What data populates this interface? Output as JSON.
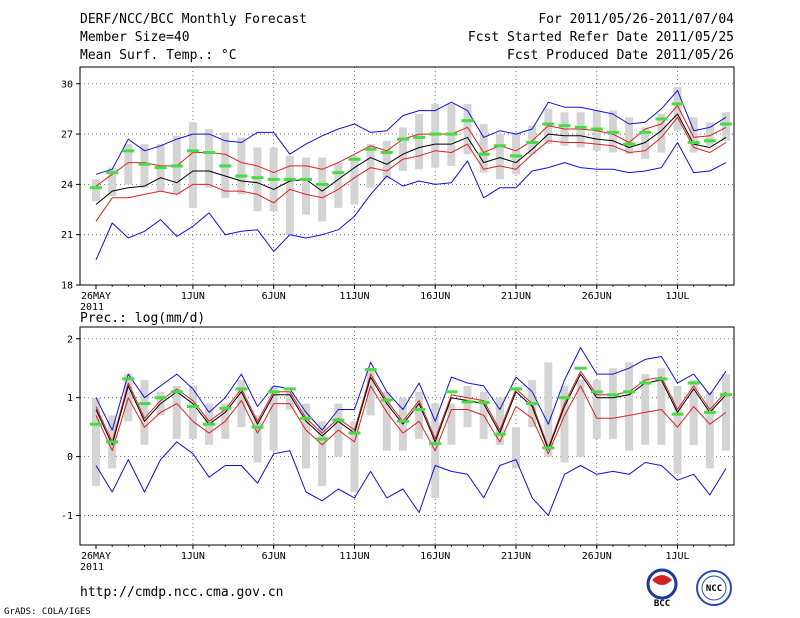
{
  "header": {
    "title": "DERF/NCC/BCC Monthly Forecast",
    "member_size": "Member Size=40",
    "variable": "Mean Surf. Temp.: °C",
    "period": "For 2011/05/26-2011/07/04",
    "started": "Fcst Started Refer Date 2011/05/25",
    "produced": "Fcst Produced Date 2011/05/26"
  },
  "footer": {
    "url": "http://cmdp.ncc.cma.gov.cn",
    "credit": "GrADS: COLA/IGES",
    "logo_bcc": "BCC",
    "logo_ncc": "NCC"
  },
  "colors": {
    "box": "#d4d4d4",
    "median": "#44dd44",
    "mean": "#000000",
    "inner": "#dd2222",
    "outer": "#1111dd",
    "grid": "#555555"
  },
  "chart_data": [
    {
      "type": "line",
      "title": "Mean Surf. Temp.: °C",
      "ylabel": "°C",
      "ylim": [
        18,
        31
      ],
      "yticks": [
        18,
        21,
        24,
        27,
        30
      ],
      "xticks": [
        "26MAY",
        "1JUN",
        "6JUN",
        "11JUN",
        "16JUN",
        "21JUN",
        "26JUN",
        "1JUL"
      ],
      "xticks_day_index": [
        0,
        6,
        11,
        16,
        21,
        26,
        31,
        36
      ],
      "year_label": "2011",
      "days": 40,
      "grid": true,
      "series": [
        {
          "name": "box_low",
          "values": [
            23.0,
            23.3,
            24.0,
            23.8,
            23.6,
            23.4,
            22.6,
            23.8,
            23.2,
            23.4,
            22.4,
            22.4,
            21.0,
            22.2,
            21.8,
            22.6,
            22.8,
            23.8,
            24.3,
            24.8,
            24.9,
            25.0,
            25.1,
            25.8,
            24.7,
            24.3,
            24.6,
            25.8,
            26.4,
            26.3,
            26.2,
            26.0,
            25.9,
            25.8,
            25.5,
            25.9,
            27.2,
            25.9,
            26.3,
            26.6
          ]
        },
        {
          "name": "box_high",
          "values": [
            24.3,
            25.0,
            26.4,
            26.4,
            26.4,
            26.9,
            27.7,
            27.3,
            27.1,
            26.8,
            26.2,
            26.2,
            25.7,
            25.6,
            25.6,
            25.3,
            25.7,
            26.4,
            26.6,
            27.4,
            28.2,
            28.8,
            28.8,
            28.8,
            27.6,
            27.0,
            27.1,
            27.5,
            28.5,
            28.3,
            28.3,
            28.4,
            28.4,
            28.0,
            27.4,
            28.2,
            29.8,
            28.0,
            27.7,
            28.3
          ]
        },
        {
          "name": "median",
          "values": [
            23.8,
            24.7,
            26.0,
            25.2,
            25.0,
            25.1,
            26.0,
            25.9,
            25.1,
            24.5,
            24.4,
            24.3,
            24.3,
            24.3,
            24.0,
            24.7,
            25.5,
            26.1,
            25.9,
            26.7,
            26.8,
            27.0,
            27.0,
            27.8,
            25.8,
            26.3,
            25.7,
            26.5,
            27.6,
            27.5,
            27.4,
            27.3,
            27.1,
            26.4,
            27.1,
            27.9,
            28.8,
            26.5,
            26.6,
            27.6
          ]
        },
        {
          "name": "mean",
          "values": [
            22.8,
            23.6,
            23.8,
            23.9,
            24.4,
            24.1,
            24.8,
            24.8,
            24.5,
            24.2,
            24.1,
            23.7,
            24.2,
            24.3,
            23.6,
            24.3,
            25.0,
            25.6,
            25.2,
            25.8,
            26.2,
            26.4,
            26.4,
            26.8,
            25.3,
            25.6,
            25.3,
            26.1,
            27.0,
            26.9,
            26.9,
            26.7,
            26.6,
            26.2,
            26.5,
            27.2,
            28.2,
            26.4,
            26.2,
            26.8
          ]
        },
        {
          "name": "lower",
          "values": [
            21.8,
            23.2,
            23.2,
            23.4,
            23.6,
            23.4,
            24.0,
            24.0,
            23.6,
            23.6,
            23.4,
            22.9,
            23.7,
            23.4,
            23.2,
            23.7,
            24.4,
            25.0,
            24.8,
            25.5,
            25.7,
            26.0,
            25.9,
            26.4,
            24.9,
            25.1,
            24.9,
            25.8,
            26.6,
            26.5,
            26.5,
            26.4,
            26.3,
            25.9,
            26.0,
            26.8,
            28.0,
            26.2,
            25.9,
            26.5
          ]
        },
        {
          "name": "upper",
          "values": [
            23.9,
            24.6,
            25.3,
            25.3,
            25.1,
            25.1,
            25.9,
            25.9,
            25.8,
            25.3,
            25.1,
            24.7,
            25.1,
            25.1,
            24.9,
            25.3,
            25.8,
            26.3,
            26.0,
            26.7,
            27.0,
            27.0,
            27.0,
            27.4,
            25.9,
            26.3,
            26.0,
            26.6,
            27.5,
            27.3,
            27.3,
            27.2,
            27.0,
            26.5,
            27.3,
            27.6,
            28.7,
            26.8,
            26.9,
            27.4
          ]
        },
        {
          "name": "min",
          "values": [
            19.5,
            21.7,
            20.8,
            21.2,
            21.9,
            20.9,
            21.5,
            22.3,
            21.0,
            21.2,
            21.3,
            20.0,
            21.0,
            20.8,
            21.0,
            21.3,
            22.1,
            23.4,
            24.5,
            23.9,
            24.2,
            24.0,
            24.1,
            25.4,
            23.2,
            23.8,
            23.8,
            24.8,
            25.0,
            25.3,
            25.0,
            24.9,
            24.9,
            24.7,
            24.8,
            25.0,
            26.5,
            24.7,
            24.8,
            25.3
          ]
        },
        {
          "name": "max",
          "values": [
            24.6,
            24.9,
            26.7,
            26.0,
            26.3,
            26.7,
            27.0,
            27.0,
            26.6,
            26.5,
            27.1,
            27.1,
            25.8,
            26.4,
            26.9,
            27.3,
            27.6,
            27.1,
            27.2,
            28.1,
            28.4,
            28.4,
            28.9,
            28.4,
            26.8,
            27.2,
            27.0,
            27.3,
            28.9,
            28.6,
            28.6,
            28.4,
            28.2,
            27.6,
            27.7,
            28.5,
            29.6,
            27.2,
            27.4,
            28.0
          ]
        }
      ]
    },
    {
      "type": "line",
      "title": "Prec.: log(mm/d)",
      "ylabel": "log(mm/d)",
      "ylim": [
        -1.5,
        2.2
      ],
      "yticks": [
        -1,
        0,
        1,
        2
      ],
      "xticks": [
        "26MAY",
        "1JUN",
        "6JUN",
        "11JUN",
        "16JUN",
        "21JUN",
        "26JUN",
        "1JUL"
      ],
      "xticks_day_index": [
        0,
        6,
        11,
        16,
        21,
        26,
        31,
        36
      ],
      "year_label": "2011",
      "days": 40,
      "grid": true,
      "series": [
        {
          "name": "box_low",
          "values": [
            -0.5,
            -0.2,
            0.6,
            0.2,
            0.7,
            0.3,
            0.3,
            0.2,
            0.3,
            0.5,
            -0.1,
            0.1,
            0.8,
            -0.2,
            -0.5,
            0.0,
            -0.6,
            0.7,
            0.1,
            0.1,
            0.3,
            -0.7,
            0.2,
            0.5,
            0.3,
            0.2,
            -0.2,
            0.5,
            0.0,
            -0.1,
            0.0,
            0.3,
            0.3,
            0.1,
            0.2,
            0.2,
            -0.3,
            0.2,
            -0.2,
            0.1
          ]
        },
        {
          "name": "box_high",
          "values": [
            1.0,
            0.7,
            1.4,
            1.3,
            1.1,
            1.2,
            1.2,
            0.9,
            0.9,
            1.3,
            0.7,
            1.2,
            1.1,
            0.9,
            0.6,
            0.9,
            0.6,
            1.5,
            1.1,
            1.0,
            1.1,
            0.9,
            0.9,
            1.2,
            1.1,
            1.0,
            0.5,
            1.3,
            1.6,
            1.2,
            1.3,
            1.3,
            1.5,
            1.6,
            1.4,
            1.5,
            1.2,
            1.3,
            1.1,
            1.4
          ]
        },
        {
          "name": "median",
          "values": [
            0.55,
            0.25,
            1.32,
            0.9,
            1.0,
            1.1,
            0.85,
            0.55,
            0.82,
            1.15,
            0.5,
            1.1,
            1.15,
            0.65,
            0.3,
            0.62,
            0.4,
            1.48,
            0.96,
            0.6,
            0.8,
            0.22,
            1.1,
            0.93,
            0.92,
            0.38,
            1.15,
            0.9,
            0.15,
            1.0,
            1.5,
            1.1,
            1.05,
            1.1,
            1.25,
            1.32,
            0.72,
            1.25,
            0.75,
            1.05
          ]
        },
        {
          "name": "mean",
          "values": [
            0.8,
            0.2,
            1.2,
            0.6,
            0.9,
            1.1,
            0.9,
            0.55,
            0.75,
            1.1,
            0.55,
            1.05,
            1.05,
            0.6,
            0.35,
            0.6,
            0.4,
            1.35,
            0.9,
            0.55,
            0.9,
            0.25,
            1.0,
            0.95,
            0.9,
            0.4,
            1.1,
            0.85,
            0.12,
            0.85,
            1.4,
            1.0,
            1.0,
            1.05,
            1.25,
            1.3,
            0.75,
            1.15,
            0.75,
            1.05
          ]
        },
        {
          "name": "lower",
          "values": [
            0.7,
            0.1,
            1.0,
            0.5,
            0.75,
            0.9,
            0.6,
            0.4,
            0.6,
            0.95,
            0.4,
            0.9,
            0.9,
            0.45,
            0.2,
            0.45,
            0.25,
            1.2,
            0.75,
            0.4,
            0.6,
            0.1,
            0.8,
            0.8,
            0.7,
            0.25,
            0.85,
            0.65,
            0.05,
            0.7,
            1.2,
            0.65,
            0.65,
            0.7,
            0.75,
            0.8,
            0.5,
            0.85,
            0.55,
            0.75
          ]
        },
        {
          "name": "upper",
          "values": [
            0.85,
            0.25,
            1.25,
            0.65,
            0.95,
            1.15,
            0.95,
            0.6,
            0.8,
            1.15,
            0.6,
            1.1,
            1.1,
            0.65,
            0.4,
            0.65,
            0.45,
            1.4,
            0.95,
            0.6,
            0.95,
            0.3,
            1.05,
            1.0,
            0.95,
            0.45,
            1.15,
            0.9,
            0.15,
            0.9,
            1.45,
            1.05,
            1.05,
            1.1,
            1.3,
            1.35,
            0.8,
            1.2,
            0.8,
            1.1
          ]
        },
        {
          "name": "min",
          "values": [
            -0.15,
            -0.6,
            -0.05,
            -0.6,
            -0.05,
            0.25,
            0.05,
            -0.35,
            -0.15,
            -0.15,
            -0.45,
            0.05,
            0.1,
            -0.6,
            -0.75,
            -0.55,
            -0.7,
            -0.25,
            -0.7,
            -0.55,
            -0.95,
            -0.15,
            -0.25,
            -0.3,
            -0.7,
            -0.15,
            -0.05,
            -0.7,
            -1.0,
            -0.3,
            -0.15,
            -0.3,
            -0.25,
            -0.3,
            -0.1,
            -0.15,
            -0.4,
            -0.3,
            -0.65,
            -0.2
          ]
        },
        {
          "name": "max",
          "values": [
            1.0,
            0.45,
            1.4,
            1.0,
            1.2,
            1.4,
            1.15,
            0.75,
            1.0,
            1.4,
            0.85,
            1.2,
            1.15,
            0.75,
            0.45,
            0.8,
            0.8,
            1.6,
            1.1,
            0.8,
            1.25,
            0.6,
            1.35,
            1.25,
            1.2,
            0.8,
            1.35,
            1.1,
            0.55,
            1.3,
            1.85,
            1.4,
            1.4,
            1.5,
            1.65,
            1.7,
            1.25,
            1.4,
            1.05,
            1.45
          ]
        }
      ]
    }
  ]
}
